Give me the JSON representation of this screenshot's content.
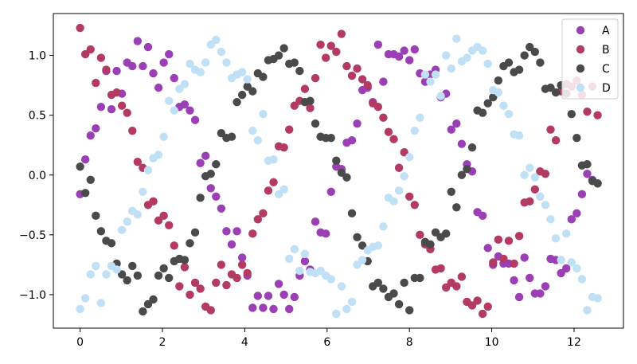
{
  "chart_data": {
    "type": "scatter",
    "title": "",
    "xlabel": "",
    "ylabel": "",
    "xlim": [
      -0.65,
      13.2
    ],
    "ylim": [
      -1.28,
      1.35
    ],
    "xticks": [
      0,
      2,
      4,
      6,
      8,
      10,
      12
    ],
    "yticks": [
      -1.0,
      -0.5,
      0.0,
      0.5,
      1.0
    ],
    "xtick_labels": [
      "0",
      "2",
      "4",
      "6",
      "8",
      "10",
      "12"
    ],
    "ytick_labels": [
      "−1.0",
      "−0.5",
      "0.0",
      "0.5",
      "1.0"
    ],
    "grid": false,
    "legend": "top-right",
    "x": [
      0.0,
      0.127,
      0.254,
      0.381,
      0.508,
      0.635,
      0.762,
      0.889,
      1.016,
      1.143,
      1.27,
      1.397,
      1.524,
      1.651,
      1.778,
      1.905,
      2.032,
      2.159,
      2.286,
      2.413,
      2.54,
      2.667,
      2.794,
      2.921,
      3.048,
      3.175,
      3.302,
      3.429,
      3.556,
      3.683,
      3.81,
      3.937,
      4.064,
      4.191,
      4.318,
      4.445,
      4.572,
      4.699,
      4.826,
      4.953,
      5.08,
      5.207,
      5.334,
      5.461,
      5.588,
      5.715,
      5.842,
      5.969,
      6.096,
      6.223,
      6.35,
      6.477,
      6.604,
      6.731,
      6.858,
      6.985,
      7.112,
      7.239,
      7.366,
      7.493,
      7.62,
      7.747,
      7.874,
      8.001,
      8.128,
      8.255,
      8.382,
      8.509,
      8.636,
      8.763,
      8.89,
      9.017,
      9.144,
      9.271,
      9.398,
      9.525,
      9.652,
      9.779,
      9.906,
      10.033,
      10.16,
      10.287,
      10.414,
      10.541,
      10.668,
      10.795,
      10.922,
      11.049,
      11.176,
      11.303,
      11.43,
      11.557,
      11.684,
      11.811,
      11.938,
      12.065,
      12.192,
      12.319,
      12.446,
      12.573
    ],
    "series": [
      {
        "name": "A",
        "color": "#9b3fb5",
        "values": [
          -0.16,
          0.13,
          0.33,
          0.39,
          0.57,
          0.87,
          0.55,
          0.87,
          0.68,
          0.94,
          0.91,
          1.12,
          0.91,
          1.07,
          0.85,
          0.73,
          0.94,
          1.01,
          0.81,
          0.57,
          0.59,
          0.54,
          0.46,
          0.1,
          0.16,
          -0.11,
          -0.18,
          -0.28,
          -0.47,
          -0.58,
          -0.47,
          -0.69,
          -0.84,
          -1.11,
          -1.01,
          -1.11,
          -1.01,
          -1.12,
          -0.91,
          -1.0,
          -1.12,
          -1.02,
          -0.84,
          -0.72,
          -0.79,
          -0.39,
          -0.48,
          -0.49,
          -0.14,
          0.07,
          0.05,
          0.27,
          0.29,
          0.43,
          0.71,
          0.73,
          0.61,
          1.09,
          0.78,
          1.01,
          1.01,
          0.99,
          1.04,
          0.96,
          1.05,
          0.85,
          0.78,
          0.84,
          0.88,
          0.65,
          0.68,
          0.38,
          0.43,
          0.26,
          0.09,
          0.03,
          -0.31,
          -0.34,
          -0.61,
          -0.75,
          -0.68,
          -0.74,
          -0.74,
          -0.88,
          -1.02,
          -0.69,
          -0.86,
          -0.99,
          -0.99,
          -0.93,
          -0.7,
          -0.71,
          -0.82,
          -0.78,
          -0.37,
          -0.32,
          -0.16,
          0.01,
          -0.04,
          -0.07
        ]
      },
      {
        "name": "B",
        "color": "#b33a62",
        "values": [
          1.23,
          1.01,
          1.05,
          0.77,
          0.98,
          0.88,
          0.67,
          0.69,
          0.58,
          0.52,
          0.37,
          0.11,
          0.06,
          -0.25,
          -0.22,
          -0.38,
          -0.34,
          -0.42,
          -0.59,
          -0.93,
          -0.77,
          -1.0,
          -0.9,
          -0.95,
          -1.1,
          -1.13,
          -0.9,
          -0.75,
          -0.92,
          -0.83,
          -0.86,
          -0.75,
          -0.82,
          -0.49,
          -0.37,
          -0.32,
          -0.13,
          -0.06,
          0.24,
          0.23,
          0.38,
          0.58,
          0.62,
          0.72,
          0.56,
          0.81,
          1.09,
          0.98,
          1.08,
          1.03,
          1.18,
          0.91,
          0.83,
          0.89,
          0.8,
          0.75,
          0.6,
          0.57,
          0.48,
          0.36,
          0.3,
          0.06,
          0.19,
          -0.18,
          -0.25,
          -0.5,
          -0.58,
          -0.62,
          -0.79,
          -0.78,
          -0.94,
          -0.9,
          -0.93,
          -0.85,
          -1.06,
          -1.09,
          -1.05,
          -1.16,
          -1.1,
          -0.73,
          -0.54,
          -0.7,
          -0.55,
          -0.74,
          -0.51,
          -0.23,
          -0.22,
          -0.12,
          0.03,
          0.01,
          0.38,
          0.29,
          0.7,
          0.76,
          0.74,
          0.79,
          0.67,
          0.53,
          0.74,
          0.5
        ]
      },
      {
        "name": "C",
        "color": "#4a4a4a",
        "values": [
          0.07,
          -0.15,
          -0.04,
          -0.34,
          -0.47,
          -0.55,
          -0.57,
          -0.74,
          -0.83,
          -0.88,
          -0.76,
          -0.84,
          -1.14,
          -1.08,
          -1.04,
          -0.84,
          -0.78,
          -0.86,
          -0.72,
          -0.7,
          -0.71,
          -0.57,
          -0.48,
          -0.19,
          -0.01,
          0.01,
          0.09,
          0.35,
          0.31,
          0.32,
          0.61,
          0.67,
          0.74,
          0.7,
          0.85,
          0.82,
          0.96,
          0.97,
          1.0,
          1.06,
          0.93,
          0.94,
          0.87,
          0.61,
          0.62,
          0.43,
          0.32,
          0.31,
          0.31,
          0.12,
          0.02,
          -0.02,
          -0.32,
          -0.52,
          -0.59,
          -0.72,
          -0.93,
          -0.9,
          -0.95,
          -1.02,
          -0.99,
          -1.08,
          -0.9,
          -1.13,
          -0.86,
          -0.86,
          -0.56,
          -0.58,
          -0.48,
          -0.52,
          -0.49,
          -0.14,
          -0.27,
          0.0,
          0.05,
          0.23,
          0.54,
          0.52,
          0.6,
          0.65,
          0.79,
          0.91,
          0.94,
          0.86,
          0.88,
          1.0,
          1.07,
          1.03,
          0.94,
          0.72,
          0.73,
          0.69,
          0.75,
          0.68,
          0.51,
          0.31,
          0.08,
          0.09,
          -0.05,
          -0.07
        ]
      },
      {
        "name": "D",
        "color": "#bfe0f5",
        "values": [
          -1.12,
          -1.03,
          -0.83,
          -0.76,
          -1.07,
          -0.83,
          -0.76,
          -0.79,
          -0.46,
          -0.39,
          -0.3,
          -0.33,
          -0.14,
          0.04,
          0.14,
          0.17,
          0.32,
          0.62,
          0.54,
          0.72,
          0.76,
          0.93,
          0.88,
          0.86,
          0.94,
          1.09,
          1.13,
          1.03,
          0.94,
          0.81,
          0.84,
          0.86,
          0.8,
          0.37,
          0.29,
          0.51,
          0.12,
          0.13,
          -0.16,
          -0.12,
          -0.7,
          -0.62,
          -0.8,
          -0.66,
          -0.81,
          -0.82,
          -0.8,
          -0.84,
          -0.87,
          -1.16,
          -0.93,
          -1.12,
          -1.06,
          -0.75,
          -0.71,
          -0.63,
          -0.6,
          -0.59,
          -0.43,
          -0.19,
          -0.22,
          -0.13,
          -0.01,
          0.15,
          0.37,
          0.48,
          0.84,
          0.78,
          0.84,
          0.66,
          1.0,
          0.89,
          1.14,
          0.95,
          0.98,
          1.04,
          1.07,
          1.04,
          0.93,
          0.71,
          0.69,
          0.58,
          0.51,
          0.34,
          0.33,
          0.0,
          0.06,
          -0.02,
          -0.18,
          -0.25,
          -0.37,
          -0.53,
          -0.71,
          -0.49,
          -0.73,
          -0.78,
          -0.87,
          -1.13,
          -1.02,
          -1.03
        ]
      }
    ]
  }
}
